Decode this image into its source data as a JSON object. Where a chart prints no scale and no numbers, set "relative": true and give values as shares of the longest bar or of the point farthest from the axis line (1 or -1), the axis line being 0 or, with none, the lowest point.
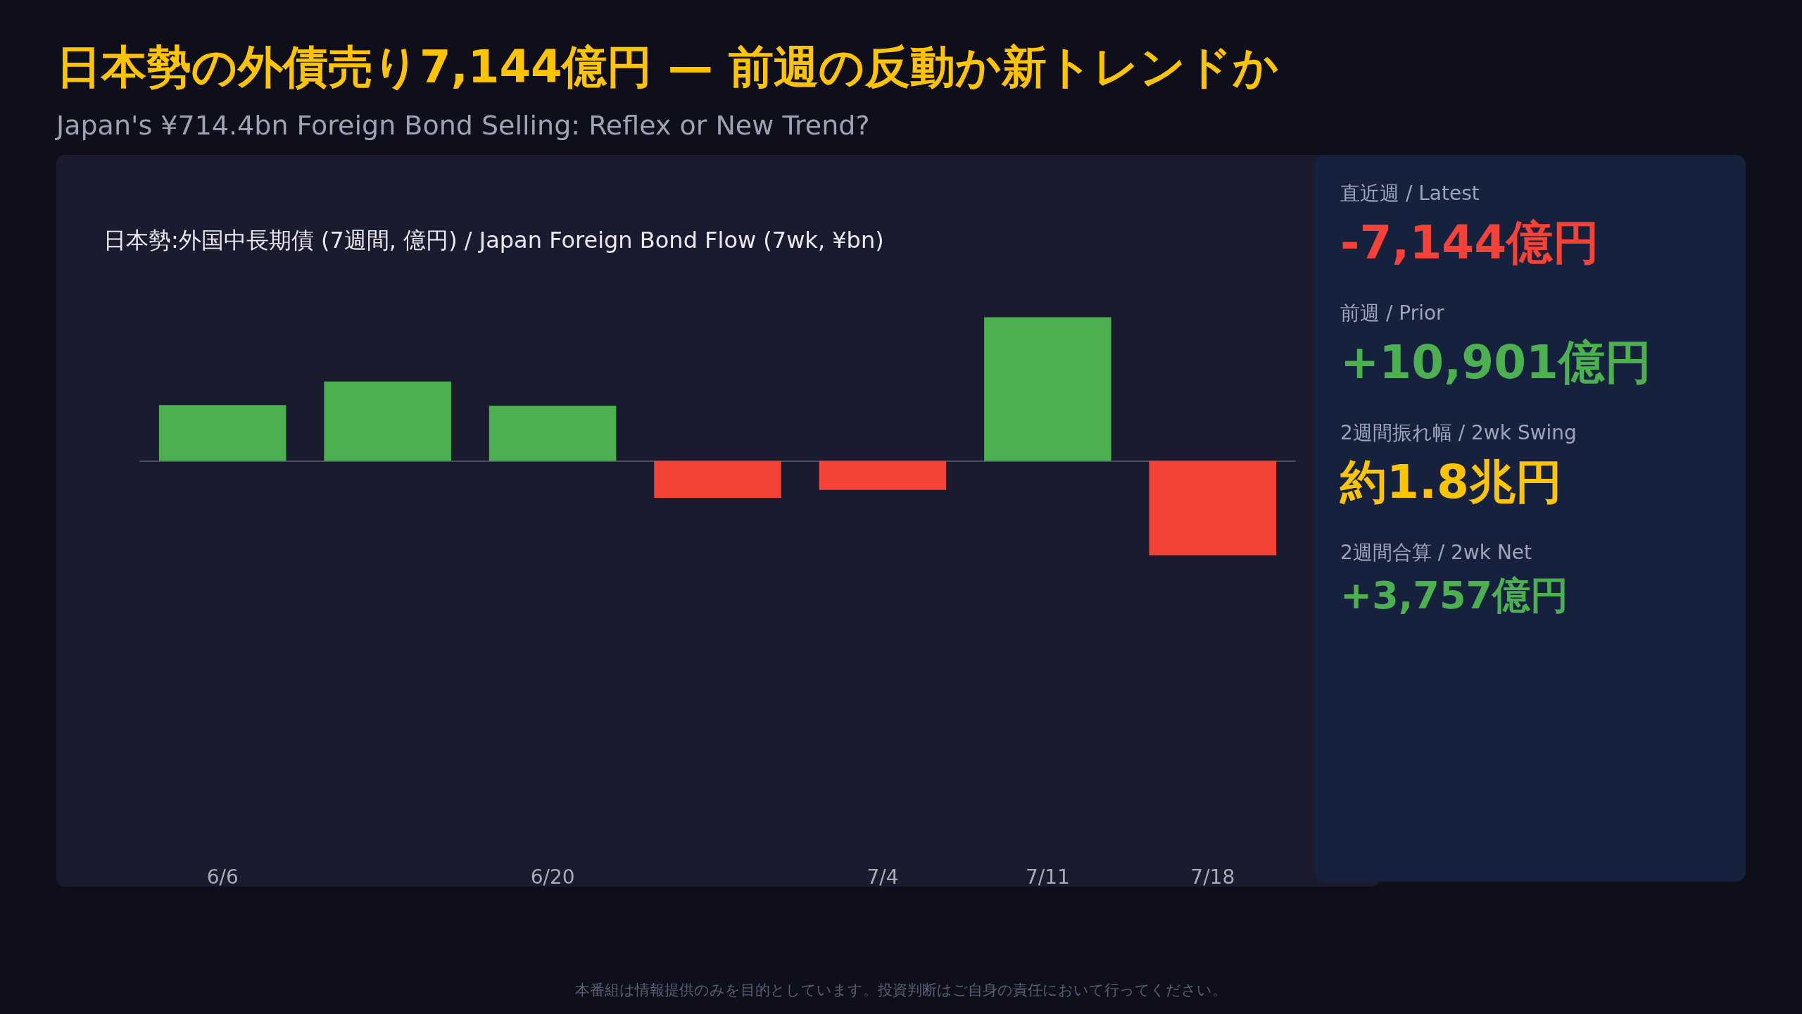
{
  "chart_data": [
    {
      "type": "bar",
      "title": "日本勢の外債売り7,144億円 — 前週の反動か新トレンドか",
      "subtitle": "Japan's ¥714.4bn Foreign Bond Selling: Reflex or New Trend?",
      "categories": [
        "6/6",
        null,
        "6/20",
        null,
        "7/4",
        "7/11",
        "7/18"
      ],
      "values": [
        0.388,
        0.552,
        0.383,
        -0.257,
        -0.202,
        1,
        -0.656
      ],
      "colors": [
        "#4caf50",
        "#4caf50",
        "#4caf50",
        "#f44336",
        "#f44336",
        "#4caf50",
        "#f44336"
      ],
      "relative": true,
      "annotations": [
        "日本勢:外国中長期債 (7週間, 億円) / Japan Foreign Bond Flow (7wk, ¥bn)",
        "本番組は情報提供のみを目的としています。投資判断はご自身の責任において行ってください。"
      ]
    },
    {
      "type": "other",
      "annotations": [
        "直近週 / Latest",
        "-7,144億円",
        "前週 / Prior",
        "+10,901億円",
        "2週間振れ幅 / 2wk Swing",
        "約1.8兆円",
        "2週間合算 / 2wk Net",
        "+3,757億円"
      ],
      "colors": [
        "#a0a4b8",
        "#f44336",
        "#a0a4b8",
        "#4caf50",
        "#a0a4b8",
        "#ffc400",
        "#a0a4b8",
        "#4caf50"
      ]
    }
  ]
}
